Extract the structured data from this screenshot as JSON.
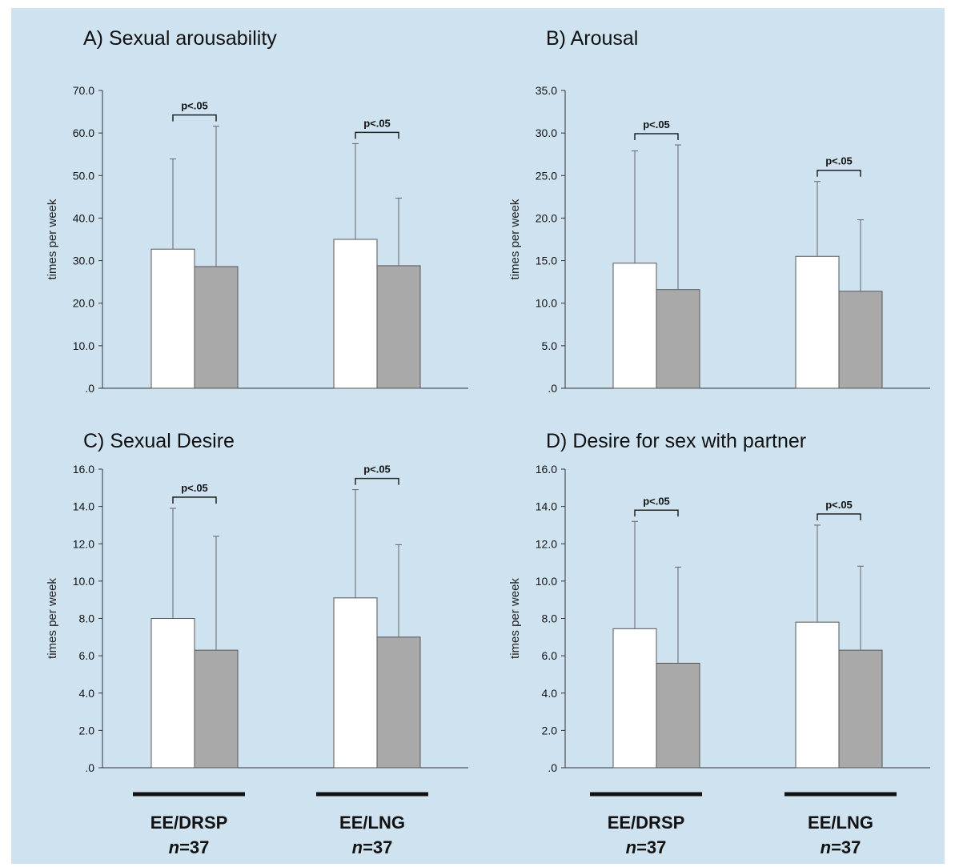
{
  "chart_data": [
    {
      "type": "bar",
      "title": "A) Sexual arousability",
      "ylabel": "times per week",
      "ylim": [
        0,
        70
      ],
      "ytick_labels": [
        ".0",
        "10.0",
        "20.0",
        "30.0",
        "40.0",
        "50.0",
        "60.0",
        "70.0"
      ],
      "categories": [
        "EE/DRSP",
        "EE/LNG"
      ],
      "series": [
        {
          "values": [
            32.7,
            35.0
          ],
          "errors": [
            21.2,
            22.5
          ],
          "color": "#ffffff"
        },
        {
          "values": [
            28.6,
            28.8
          ],
          "errors": [
            33.0,
            15.9
          ],
          "color": "#a9a9a9"
        }
      ],
      "significance": [
        "p<.05",
        "p<.05"
      ]
    },
    {
      "type": "bar",
      "title": "B) Arousal",
      "ylabel": "times per week",
      "ylim": [
        0,
        35
      ],
      "ytick_labels": [
        ".0",
        "5.0",
        "10.0",
        "15.0",
        "20.0",
        "25.0",
        "30.0",
        "35.0"
      ],
      "categories": [
        "EE/DRSP",
        "EE/LNG"
      ],
      "series": [
        {
          "values": [
            14.7,
            15.5
          ],
          "errors": [
            13.2,
            8.8
          ],
          "color": "#ffffff"
        },
        {
          "values": [
            11.6,
            11.4
          ],
          "errors": [
            17.0,
            8.4
          ],
          "color": "#a9a9a9"
        }
      ],
      "significance": [
        "p<.05",
        "p<.05"
      ]
    },
    {
      "type": "bar",
      "title": "C) Sexual Desire",
      "ylabel": "times per week",
      "ylim": [
        0,
        16
      ],
      "ytick_labels": [
        ".0",
        "2.0",
        "4.0",
        "6.0",
        "8.0",
        "10.0",
        "12.0",
        "14.0",
        "16.0"
      ],
      "categories": [
        "EE/DRSP",
        "EE/LNG"
      ],
      "series": [
        {
          "values": [
            8.0,
            9.1
          ],
          "errors": [
            5.9,
            5.8
          ],
          "color": "#ffffff"
        },
        {
          "values": [
            6.3,
            7.0
          ],
          "errors": [
            6.1,
            4.95
          ],
          "color": "#a9a9a9"
        }
      ],
      "significance": [
        "p<.05",
        "p<.05"
      ]
    },
    {
      "type": "bar",
      "title": "D) Desire for sex with partner",
      "ylabel": "times per week",
      "ylim": [
        0,
        16
      ],
      "ytick_labels": [
        ".0",
        "2.0",
        "4.0",
        "6.0",
        "8.0",
        "10.0",
        "12.0",
        "14.0",
        "16.0"
      ],
      "categories": [
        "EE/DRSP",
        "EE/LNG"
      ],
      "series": [
        {
          "values": [
            7.45,
            7.8
          ],
          "errors": [
            5.75,
            5.2
          ],
          "color": "#ffffff"
        },
        {
          "values": [
            5.6,
            6.3
          ],
          "errors": [
            5.15,
            4.5
          ],
          "color": "#a9a9a9"
        }
      ],
      "significance": [
        "p<.05",
        "p<.05"
      ]
    }
  ],
  "group_labels": [
    {
      "name": "EE/DRSP",
      "n_prefix": "n",
      "n_value": "=37"
    },
    {
      "name": "EE/LNG",
      "n_prefix": "n",
      "n_value": "=37"
    },
    {
      "name": "EE/DRSP",
      "n_prefix": "n",
      "n_value": "=37"
    },
    {
      "name": "EE/LNG",
      "n_prefix": "n",
      "n_value": "=37"
    }
  ],
  "colors": {
    "background": "#cfe2ef",
    "bar_outline": "#555555",
    "axis": "#333333",
    "group_underline": "#111111"
  }
}
